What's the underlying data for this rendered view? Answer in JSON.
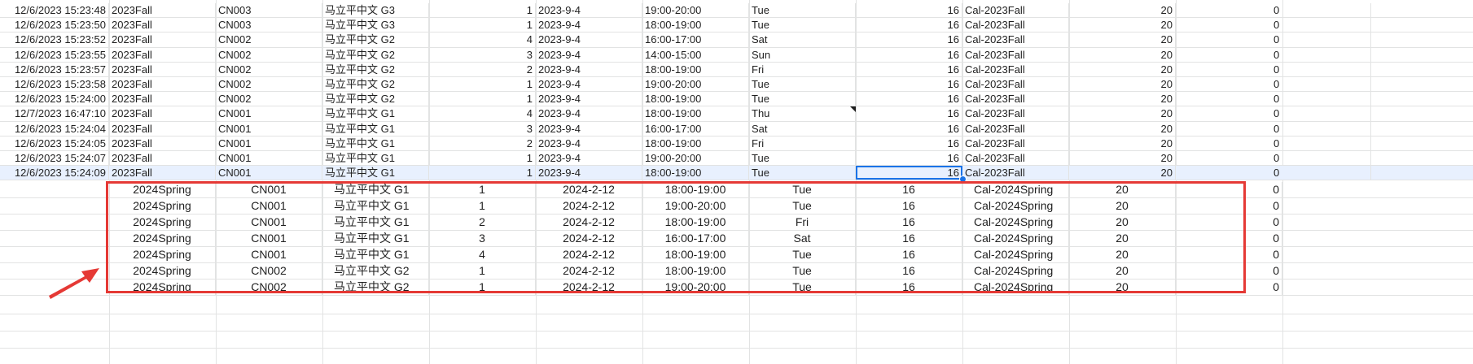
{
  "sheet": {
    "accent_color": "#1a73e8",
    "highlight_color": "#e53935",
    "fall_rows": [
      [
        "12/6/2023 15:23:48",
        "2023Fall",
        "CN003",
        "马立平中文 G3",
        "1",
        "2023-9-4",
        "19:00-20:00",
        "Tue",
        "16",
        "Cal-2023Fall",
        "20",
        "0"
      ],
      [
        "12/6/2023 15:23:50",
        "2023Fall",
        "CN003",
        "马立平中文 G3",
        "1",
        "2023-9-4",
        "18:00-19:00",
        "Tue",
        "16",
        "Cal-2023Fall",
        "20",
        "0"
      ],
      [
        "12/6/2023 15:23:52",
        "2023Fall",
        "CN002",
        "马立平中文 G2",
        "4",
        "2023-9-4",
        "16:00-17:00",
        "Sat",
        "16",
        "Cal-2023Fall",
        "20",
        "0"
      ],
      [
        "12/6/2023 15:23:55",
        "2023Fall",
        "CN002",
        "马立平中文 G2",
        "3",
        "2023-9-4",
        "14:00-15:00",
        "Sun",
        "16",
        "Cal-2023Fall",
        "20",
        "0"
      ],
      [
        "12/6/2023 15:23:57",
        "2023Fall",
        "CN002",
        "马立平中文 G2",
        "2",
        "2023-9-4",
        "18:00-19:00",
        "Fri",
        "16",
        "Cal-2023Fall",
        "20",
        "0"
      ],
      [
        "12/6/2023 15:23:58",
        "2023Fall",
        "CN002",
        "马立平中文 G2",
        "1",
        "2023-9-4",
        "19:00-20:00",
        "Tue",
        "16",
        "Cal-2023Fall",
        "20",
        "0"
      ],
      [
        "12/6/2023 15:24:00",
        "2023Fall",
        "CN002",
        "马立平中文 G2",
        "1",
        "2023-9-4",
        "18:00-19:00",
        "Tue",
        "16",
        "Cal-2023Fall",
        "20",
        "0"
      ],
      [
        "12/7/2023 16:47:10",
        "2023Fall",
        "CN001",
        "马立平中文 G1",
        "4",
        "2023-9-4",
        "18:00-19:00",
        "Thu",
        "16",
        "Cal-2023Fall",
        "20",
        "0"
      ],
      [
        "12/6/2023 15:24:04",
        "2023Fall",
        "CN001",
        "马立平中文 G1",
        "3",
        "2023-9-4",
        "16:00-17:00",
        "Sat",
        "16",
        "Cal-2023Fall",
        "20",
        "0"
      ],
      [
        "12/6/2023 15:24:05",
        "2023Fall",
        "CN001",
        "马立平中文 G1",
        "2",
        "2023-9-4",
        "18:00-19:00",
        "Fri",
        "16",
        "Cal-2023Fall",
        "20",
        "0"
      ],
      [
        "12/6/2023 15:24:07",
        "2023Fall",
        "CN001",
        "马立平中文 G1",
        "1",
        "2023-9-4",
        "19:00-20:00",
        "Tue",
        "16",
        "Cal-2023Fall",
        "20",
        "0"
      ],
      [
        "12/6/2023 15:24:09",
        "2023Fall",
        "CN001",
        "马立平中文 G1",
        "1",
        "2023-9-4",
        "18:00-19:00",
        "Tue",
        "16",
        "Cal-2023Fall",
        "20",
        "0"
      ]
    ],
    "spring_rows": [
      [
        "2024Spring",
        "CN001",
        "马立平中文 G1",
        "1",
        "2024-2-12",
        "18:00-19:00",
        "Tue",
        "16",
        "Cal-2024Spring",
        "20",
        "0"
      ],
      [
        "2024Spring",
        "CN001",
        "马立平中文 G1",
        "1",
        "2024-2-12",
        "19:00-20:00",
        "Tue",
        "16",
        "Cal-2024Spring",
        "20",
        "0"
      ],
      [
        "2024Spring",
        "CN001",
        "马立平中文 G1",
        "2",
        "2024-2-12",
        "18:00-19:00",
        "Fri",
        "16",
        "Cal-2024Spring",
        "20",
        "0"
      ],
      [
        "2024Spring",
        "CN001",
        "马立平中文 G1",
        "3",
        "2024-2-12",
        "16:00-17:00",
        "Sat",
        "16",
        "Cal-2024Spring",
        "20",
        "0"
      ],
      [
        "2024Spring",
        "CN001",
        "马立平中文 G1",
        "4",
        "2024-2-12",
        "18:00-19:00",
        "Tue",
        "16",
        "Cal-2024Spring",
        "20",
        "0"
      ],
      [
        "2024Spring",
        "CN002",
        "马立平中文 G2",
        "1",
        "2024-2-12",
        "18:00-19:00",
        "Tue",
        "16",
        "Cal-2024Spring",
        "20",
        "0"
      ],
      [
        "2024Spring",
        "CN002",
        "马立平中文 G2",
        "1",
        "2024-2-12",
        "19:00-20:00",
        "Tue",
        "16",
        "Cal-2024Spring",
        "20",
        "0"
      ]
    ]
  }
}
